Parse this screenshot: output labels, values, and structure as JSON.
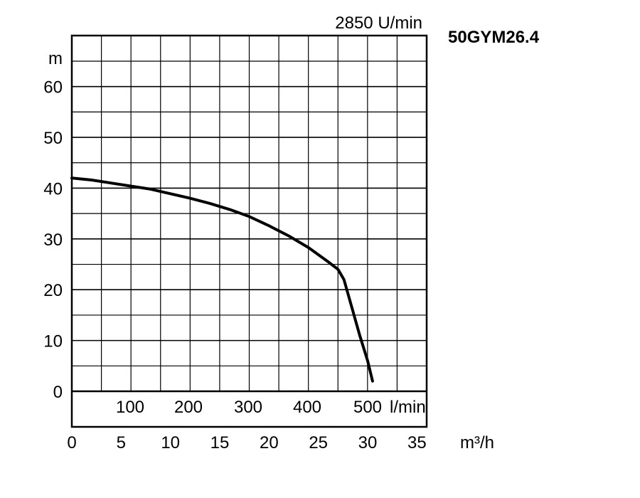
{
  "chart_data": {
    "type": "line",
    "title": "50GYM26.4",
    "speed_label": "2850 U/min",
    "ylabel": "m",
    "xlabel": "m³/h",
    "x_secondary_unit": "l/min",
    "ylim": [
      0,
      70
    ],
    "xlim": [
      0,
      36
    ],
    "grid": true,
    "y_ticks": [
      0,
      10,
      20,
      30,
      40,
      50,
      60
    ],
    "x_ticks_m3h": [
      0,
      5,
      10,
      15,
      20,
      25,
      30,
      35
    ],
    "x_ticks_lmin": [
      "100",
      "200",
      "300",
      "400",
      "500"
    ],
    "series": [
      {
        "x": [
          0,
          2,
          4,
          6,
          8,
          10,
          12,
          14,
          16,
          18,
          20,
          22,
          24,
          26,
          27,
          27.6,
          28.4,
          29.2,
          30,
          30.5
        ],
        "y": [
          42,
          41.6,
          41,
          40.4,
          39.8,
          38.9,
          38,
          37,
          35.8,
          34.4,
          32.6,
          30.6,
          28.3,
          25.5,
          24,
          22,
          16.5,
          11,
          6,
          2
        ]
      }
    ],
    "line_color": "#000000"
  }
}
